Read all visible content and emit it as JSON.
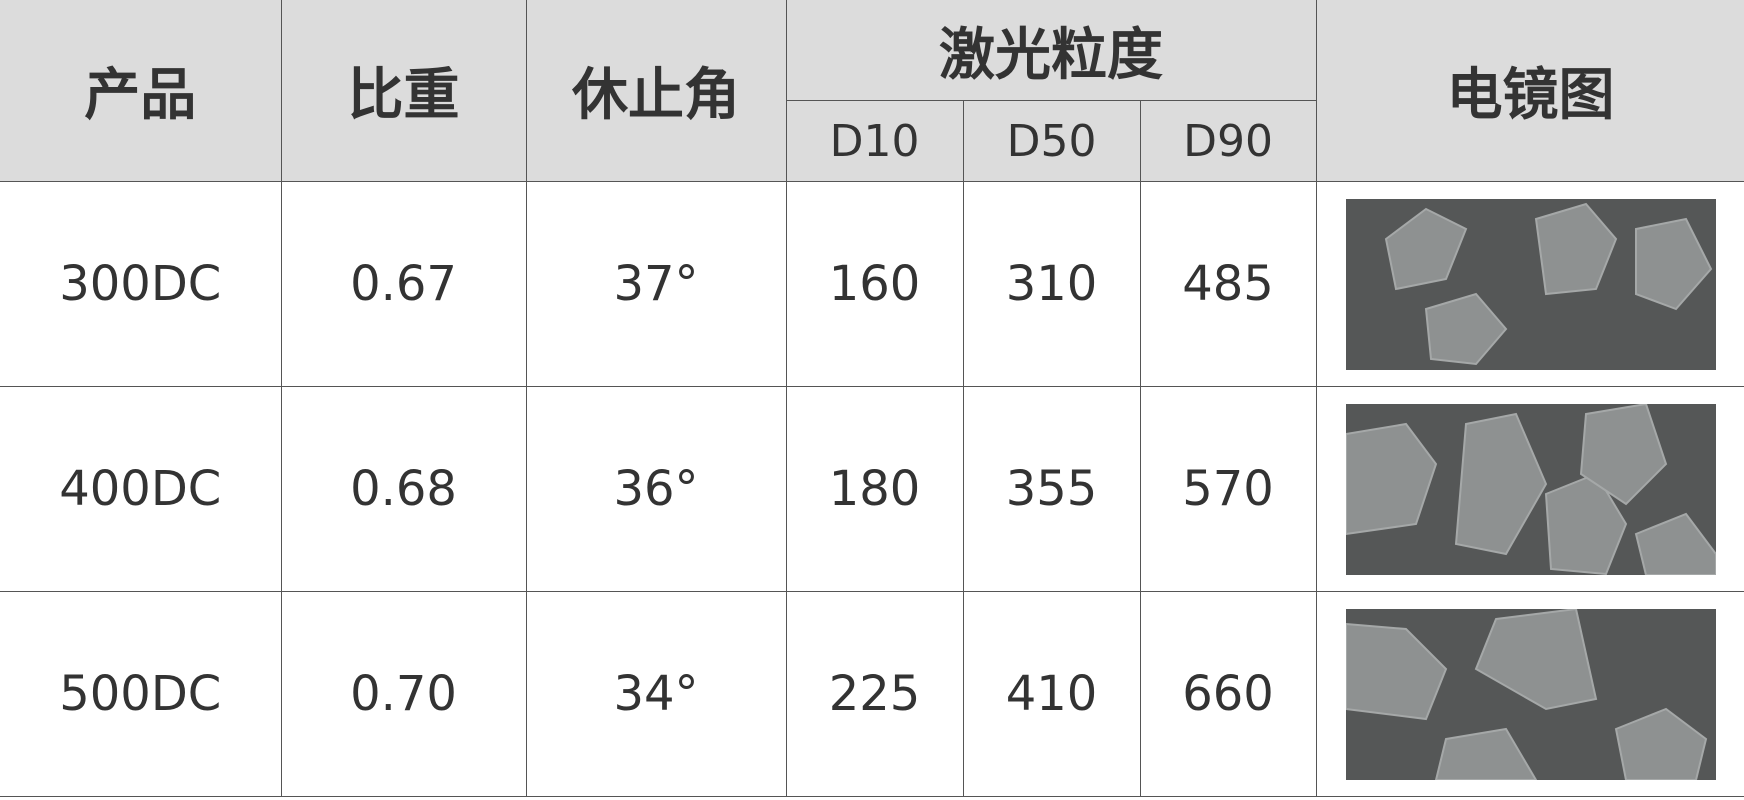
{
  "headers": {
    "product": "产品",
    "density": "比重",
    "repose_angle": "休止角",
    "laser_size": "激光粒度",
    "d10": "D10",
    "d50": "D50",
    "d90": "D90",
    "sem": "电镜图"
  },
  "rows": [
    {
      "product": "300DC",
      "density": "0.67",
      "angle": "37°",
      "d10": "160",
      "d50": "310",
      "d90": "485",
      "sem_image": "sem-particles-image"
    },
    {
      "product": "400DC",
      "density": "0.68",
      "angle": "36°",
      "d10": "180",
      "d50": "355",
      "d90": "570",
      "sem_image": "sem-particles-image"
    },
    {
      "product": "500DC",
      "density": "0.70",
      "angle": "34°",
      "d10": "225",
      "d50": "410",
      "d90": "660",
      "sem_image": "sem-particles-image"
    }
  ],
  "colors": {
    "header_bg": "#dcdcdc",
    "text": "#333333",
    "sem_bg": "#555757",
    "particle": "#8e9191"
  }
}
